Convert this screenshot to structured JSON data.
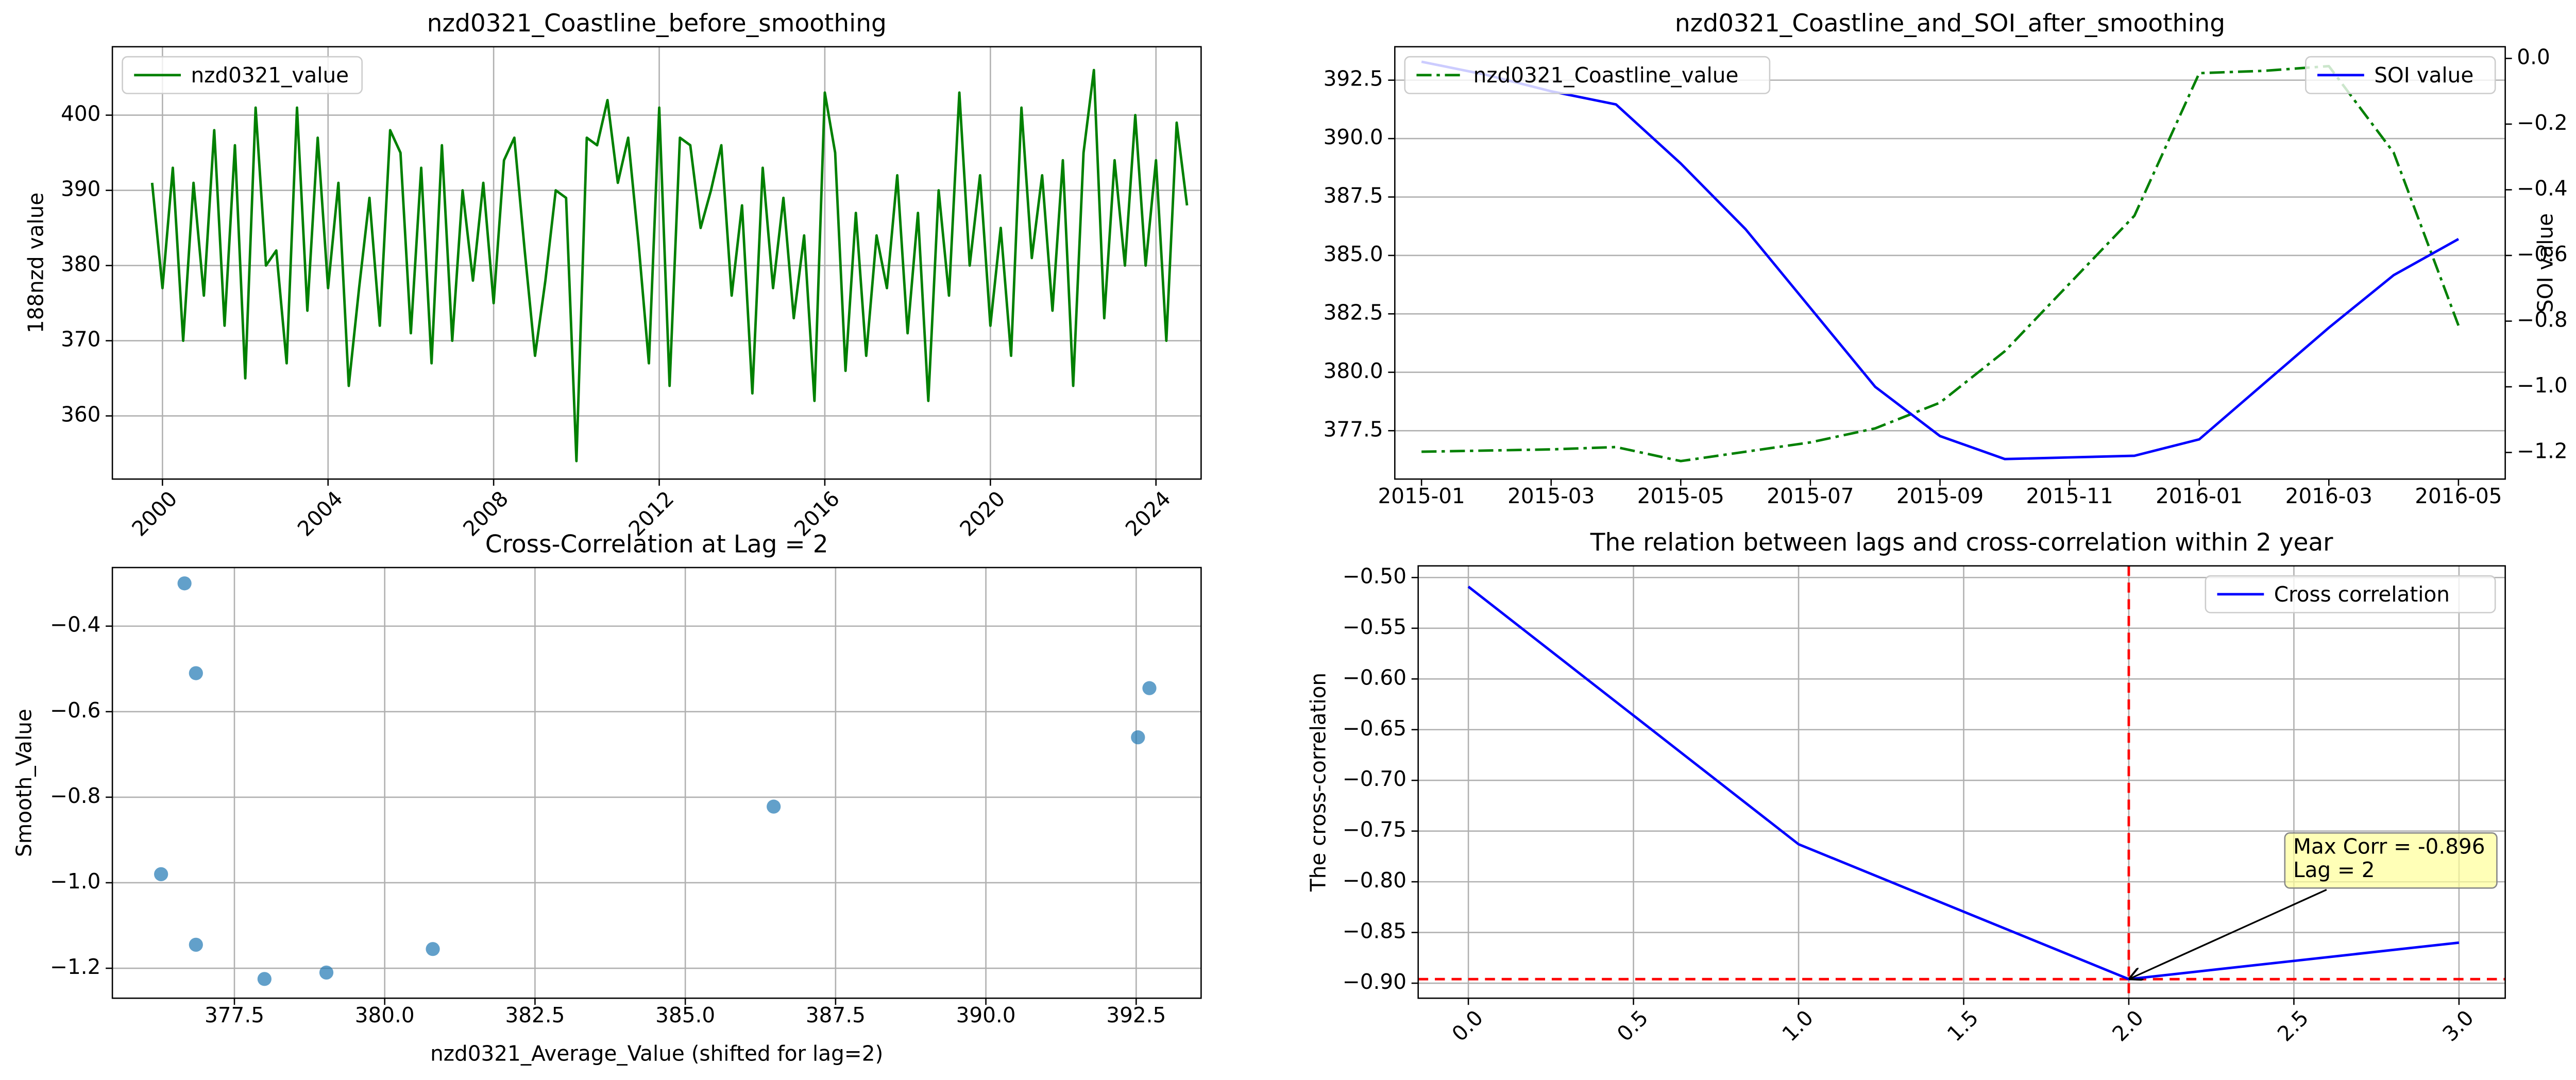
{
  "chart_data": [
    {
      "type": "line",
      "title": "nzd0321_Coastline_before_smoothing",
      "ylabel": "188nzd value",
      "x": [
        1999.75,
        2000,
        2000.25,
        2000.5,
        2000.75,
        2001,
        2001.25,
        2001.5,
        2001.75,
        2002,
        2002.25,
        2002.5,
        2002.75,
        2003,
        2003.25,
        2003.5,
        2003.75,
        2004,
        2004.25,
        2004.5,
        2004.75,
        2005,
        2005.25,
        2005.5,
        2005.75,
        2006,
        2006.25,
        2006.5,
        2006.75,
        2007,
        2007.25,
        2007.5,
        2007.75,
        2008,
        2008.25,
        2008.5,
        2008.75,
        2009,
        2009.25,
        2009.5,
        2009.75,
        2010,
        2010.25,
        2010.5,
        2010.75,
        2011,
        2011.25,
        2011.5,
        2011.75,
        2012,
        2012.25,
        2012.5,
        2012.75,
        2013,
        2013.25,
        2013.5,
        2013.75,
        2014,
        2014.25,
        2014.5,
        2014.75,
        2015,
        2015.25,
        2015.5,
        2015.75,
        2016,
        2016.25,
        2016.5,
        2016.75,
        2017,
        2017.25,
        2017.5,
        2017.75,
        2018,
        2018.25,
        2018.5,
        2018.75,
        2019,
        2019.25,
        2019.5,
        2019.75,
        2020,
        2020.25,
        2020.5,
        2020.75,
        2021,
        2021.25,
        2021.5,
        2021.75,
        2022,
        2022.25,
        2022.5,
        2022.75,
        2023,
        2023.25,
        2023.5,
        2023.75,
        2024,
        2024.25,
        2024.5,
        2024.75
      ],
      "series": [
        {
          "name": "nzd0321_value",
          "color": "green",
          "legend_loc": "upper-left",
          "values": [
            391,
            377,
            393,
            370,
            391,
            376,
            398,
            372,
            396,
            365,
            401,
            380,
            382,
            367,
            401,
            374,
            397,
            377,
            391,
            364,
            377,
            389,
            372,
            398,
            395,
            371,
            393,
            367,
            396,
            370,
            390,
            378,
            391,
            375,
            394,
            397,
            382,
            368,
            378,
            390,
            389,
            354,
            397,
            396,
            402,
            391,
            397,
            383,
            367,
            401,
            364,
            397,
            396,
            385,
            390,
            396,
            376,
            388,
            363,
            393,
            377,
            389,
            373,
            384,
            362,
            403,
            395,
            366,
            387,
            368,
            384,
            377,
            392,
            371,
            387,
            362,
            390,
            376,
            403,
            380,
            392,
            372,
            385,
            368,
            401,
            381,
            392,
            374,
            394,
            364,
            395,
            406,
            373,
            394,
            380,
            400,
            380,
            394,
            370,
            399,
            388
          ]
        }
      ],
      "xlim": [
        1998.79,
        2025.09
      ],
      "xticks": [
        2000,
        2004,
        2008,
        2012,
        2016,
        2020,
        2024
      ],
      "xtick_rotation": 45,
      "ylim": [
        351.6,
        409.1
      ],
      "yticks": [
        360,
        370,
        380,
        390,
        400
      ],
      "grid": "both"
    },
    {
      "type": "line",
      "title": "nzd0321_Coastline_and_SOI_after_smoothing",
      "y2label": "SOI value",
      "x": [
        "2015-01",
        null,
        "2015-03",
        null,
        "2015-05",
        null,
        "2015-07",
        null,
        "2015-09",
        null,
        "2015-11",
        null,
        "2016-01",
        null,
        "2016-03",
        null,
        "2016-05"
      ],
      "series": [
        {
          "name": "nzd0321_Coastline_value",
          "color": "green",
          "linestyle": "dashdot",
          "legend_loc": "upper-left",
          "values": [
            376.6,
            376.65,
            376.7,
            376.8,
            376.2,
            376.6,
            377.0,
            377.6,
            378.7,
            380.9,
            383.8,
            386.7,
            392.8,
            392.9,
            393.1,
            389.4,
            382.0
          ]
        },
        {
          "name": "SOI value",
          "color": "blue",
          "axis": "y2",
          "legend_loc": "upper-right",
          "values": [
            -0.01,
            -0.05,
            -0.1,
            -0.14,
            -0.32,
            -0.52,
            -0.76,
            -1.0,
            -1.15,
            -1.22,
            -1.215,
            -1.21,
            -1.16,
            -0.99,
            -0.82,
            -0.66,
            -0.55
          ]
        }
      ],
      "ylim": [
        375.43,
        393.93
      ],
      "yticks": [
        377.5,
        {
          "value": 380,
          "label": "380.0"
        },
        382.5,
        {
          "value": 385,
          "label": "385.0"
        },
        387.5,
        {
          "value": 390,
          "label": "390.0"
        },
        392.5
      ],
      "y2lim": [
        -1.281,
        0.0356
      ],
      "y2ticks": [
        {
          "value": 0,
          "label": "0.0"
        },
        {
          "value": -0.2,
          "label": "−0.2"
        },
        {
          "value": -0.4,
          "label": "−0.4"
        },
        {
          "value": -0.6,
          "label": "−0.6"
        },
        {
          "value": -0.8,
          "label": "−0.8"
        },
        {
          "value": -1,
          "label": "−1.0"
        },
        {
          "value": -1.2,
          "label": "−1.2"
        }
      ],
      "grid": "y"
    },
    {
      "type": "scatter",
      "title": "Cross-Correlation at Lag = 2",
      "xlabel": "nzd0321_Average_Value (shifted for lag=2)",
      "ylabel": "Smooth_Value",
      "color": "#1f77b4",
      "opacity": 0.7,
      "x": [
        376.67,
        376.86,
        376.28,
        376.86,
        378.0,
        379.03,
        380.8,
        386.47,
        392.53,
        392.72
      ],
      "values": [
        -0.3,
        -0.51,
        -0.98,
        -1.145,
        -1.225,
        -1.21,
        -1.155,
        -0.822,
        -0.66,
        -0.545
      ],
      "xlim": [
        375.47,
        393.58
      ],
      "xticks": [
        377.5,
        {
          "value": 380,
          "label": "380.0"
        },
        382.5,
        {
          "value": 385,
          "label": "385.0"
        },
        387.5,
        {
          "value": 390,
          "label": "390.0"
        },
        392.5
      ],
      "ylim": [
        -1.27,
        -0.263
      ],
      "yticks": [
        {
          "value": -0.4,
          "label": "−0.4"
        },
        {
          "value": -0.6,
          "label": "−0.6"
        },
        {
          "value": -0.8,
          "label": "−0.8"
        },
        {
          "value": -1,
          "label": "−1.0"
        },
        {
          "value": -1.2,
          "label": "−1.2"
        }
      ],
      "grid": "both"
    },
    {
      "type": "line",
      "title": "The relation between lags and cross-correlation within 2 year",
      "ylabel": "The cross-correlation",
      "x": [
        0,
        1,
        2,
        3
      ],
      "series": [
        {
          "name": "Cross correlation",
          "color": "blue",
          "legend_loc": "upper-right",
          "values": [
            -0.509,
            -0.763,
            -0.896,
            -0.86
          ]
        }
      ],
      "xlim": [
        -0.152,
        3.14
      ],
      "xticks": [
        {
          "value": 0,
          "label": "0.0"
        },
        0.5,
        {
          "value": 1,
          "label": "1.0"
        },
        1.5,
        {
          "value": 2,
          "label": "2.0"
        },
        2.5,
        {
          "value": 3,
          "label": "3.0"
        }
      ],
      "xtick_rotation": 45,
      "ylim": [
        -0.9148,
        -0.4885
      ],
      "yticks": [
        {
          "value": -0.5,
          "label": "−0.50"
        },
        {
          "value": -0.55,
          "label": "−0.55"
        },
        {
          "value": -0.6,
          "label": "−0.60"
        },
        {
          "value": -0.65,
          "label": "−0.65"
        },
        {
          "value": -0.7,
          "label": "−0.70"
        },
        {
          "value": -0.75,
          "label": "−0.75"
        },
        {
          "value": -0.8,
          "label": "−0.80"
        },
        {
          "value": -0.85,
          "label": "−0.85"
        },
        {
          "value": -0.9,
          "label": "−0.90"
        }
      ],
      "vline": 2,
      "hline": -0.896,
      "ref_line_color": "red",
      "annotation": [
        "Max Corr = -0.896",
        "Lag = 2"
      ],
      "grid": "both"
    }
  ]
}
